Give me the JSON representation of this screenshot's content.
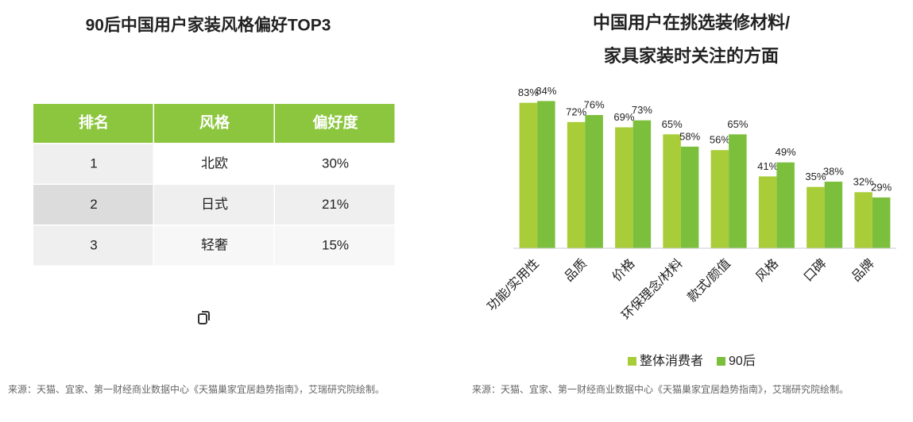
{
  "table": {
    "title": "90后中国用户家装风格偏好TOP3",
    "header": [
      "排名",
      "风格",
      "偏好度"
    ],
    "rows": [
      [
        "1",
        "北欧",
        "30%"
      ],
      [
        "2",
        "日式",
        "21%"
      ],
      [
        "3",
        "轻奢",
        "15%"
      ]
    ]
  },
  "left_source": "来源：天猫、宜家、第一财经商业数据中心《天猫巢家宜居趋势指南》，艾瑞研究院绘制。",
  "chart_data": {
    "type": "bar",
    "title": [
      "中国用户在挑选装修材料/",
      "家具家装时关注的方面"
    ],
    "categories": [
      "功能/实用性",
      "品质",
      "价格",
      "环保理念/材料",
      "款式/颜值",
      "风格",
      "口碑",
      "品牌"
    ],
    "series": [
      {
        "name": "整体消费者",
        "color": "#a9cd38",
        "values": [
          83,
          72,
          69,
          65,
          56,
          41,
          35,
          32
        ],
        "value_labels": [
          "83%",
          "72%",
          "69%",
          "65%",
          "56%",
          "41%",
          "35%",
          "32%"
        ]
      },
      {
        "name": "90后",
        "color": "#7cbf3c",
        "values": [
          84,
          76,
          73,
          58,
          65,
          49,
          38,
          29
        ],
        "value_labels": [
          "84%",
          "76%",
          "73%",
          "58%",
          "65%",
          "49%",
          "38%",
          "29%"
        ]
      }
    ],
    "ylim": [
      0,
      100
    ],
    "source": "来源：天猫、宜家、第一财经商业数据中心《天猫巢家宜居趋势指南》，艾瑞研究院绘制。"
  }
}
